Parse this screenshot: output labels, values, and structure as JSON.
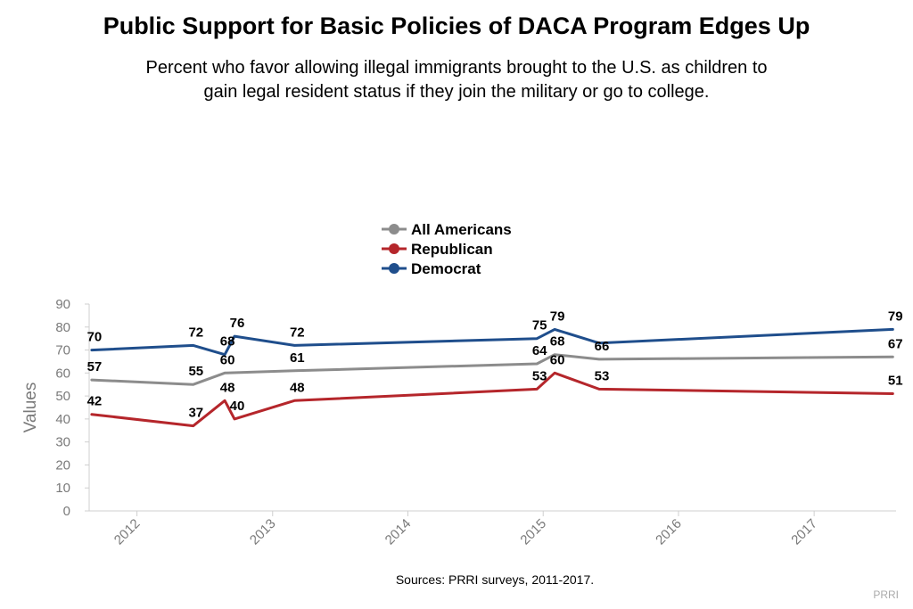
{
  "header": {
    "title": "Public Support for Basic Policies of DACA Program Edges Up",
    "subtitle": "Percent who favor allowing illegal immigrants brought to the U.S. as children to gain legal resident status if they join the military or go to college."
  },
  "footer": {
    "source": "Sources: PRRI surveys, 2011-2017.",
    "credit": "PRRI"
  },
  "chart_data": {
    "type": "line",
    "title": "Public Support for Basic Policies of DACA Program Edges Up",
    "ylabel": "Values",
    "xlabel": "",
    "ylim": [
      0,
      90
    ],
    "yticks": [
      0,
      10,
      20,
      30,
      40,
      50,
      60,
      70,
      80,
      90
    ],
    "xlim": [
      "2011-08-25",
      "2017-08-10"
    ],
    "xticks": [
      "2012",
      "2013",
      "2014",
      "2015",
      "2016",
      "2017"
    ],
    "grid": false,
    "legend_position": "top-center",
    "series": [
      {
        "name": "All Americans",
        "color": "#8c8c8c",
        "x": [
          "2011-09-01",
          "2012-06-01",
          "2012-08-25",
          "2013-03-01",
          "2014-12-15",
          "2015-02-01",
          "2015-06-01",
          "2017-08-01"
        ],
        "values": [
          57,
          55,
          60,
          61,
          64,
          68,
          66,
          67
        ]
      },
      {
        "name": "Republican",
        "color": "#b5262b",
        "x": [
          "2011-09-01",
          "2012-06-01",
          "2012-08-25",
          "2012-09-20",
          "2013-03-01",
          "2014-12-15",
          "2015-02-01",
          "2015-06-01",
          "2017-08-01"
        ],
        "values": [
          42,
          37,
          48,
          40,
          48,
          53,
          60,
          53,
          51
        ]
      },
      {
        "name": "Democrat",
        "color": "#1f4e8c",
        "x": [
          "2011-09-01",
          "2012-06-01",
          "2012-08-25",
          "2012-09-20",
          "2013-03-01",
          "2014-12-15",
          "2015-02-01",
          "2015-06-01",
          "2017-08-01"
        ],
        "values": [
          70,
          72,
          68,
          76,
          72,
          75,
          79,
          73,
          79
        ]
      }
    ],
    "data_labels": [
      {
        "series": "Democrat",
        "x": "2011-09-01",
        "text": "70"
      },
      {
        "series": "Democrat",
        "x": "2012-06-01",
        "text": "72"
      },
      {
        "series": "Democrat",
        "x": "2012-08-25",
        "text": "68"
      },
      {
        "series": "Democrat",
        "x": "2012-09-20",
        "text": "76"
      },
      {
        "series": "Democrat",
        "x": "2013-03-01",
        "text": "72"
      },
      {
        "series": "Democrat",
        "x": "2014-12-15",
        "text": "75"
      },
      {
        "series": "Democrat",
        "x": "2015-02-01",
        "text": "79"
      },
      {
        "series": "Democrat",
        "x": "2017-08-01",
        "text": "79"
      },
      {
        "series": "All Americans",
        "x": "2011-09-01",
        "text": "57"
      },
      {
        "series": "All Americans",
        "x": "2012-06-01",
        "text": "55"
      },
      {
        "series": "All Americans",
        "x": "2012-08-25",
        "text": "60"
      },
      {
        "series": "All Americans",
        "x": "2013-03-01",
        "text": "61"
      },
      {
        "series": "All Americans",
        "x": "2014-12-15",
        "text": "64"
      },
      {
        "series": "All Americans",
        "x": "2015-02-01",
        "text": "68"
      },
      {
        "series": "All Americans",
        "x": "2015-06-01",
        "text": "66"
      },
      {
        "series": "All Americans",
        "x": "2017-08-01",
        "text": "67"
      },
      {
        "series": "Republican",
        "x": "2011-09-01",
        "text": "42"
      },
      {
        "series": "Republican",
        "x": "2012-06-01",
        "text": "37"
      },
      {
        "series": "Republican",
        "x": "2012-08-25",
        "text": "48"
      },
      {
        "series": "Republican",
        "x": "2012-09-20",
        "text": "40"
      },
      {
        "series": "Republican",
        "x": "2013-03-01",
        "text": "48"
      },
      {
        "series": "Republican",
        "x": "2014-12-15",
        "text": "53"
      },
      {
        "series": "Republican",
        "x": "2015-02-01",
        "text": "60"
      },
      {
        "series": "Republican",
        "x": "2015-06-01",
        "text": "53"
      },
      {
        "series": "Republican",
        "x": "2017-08-01",
        "text": "51"
      }
    ]
  }
}
